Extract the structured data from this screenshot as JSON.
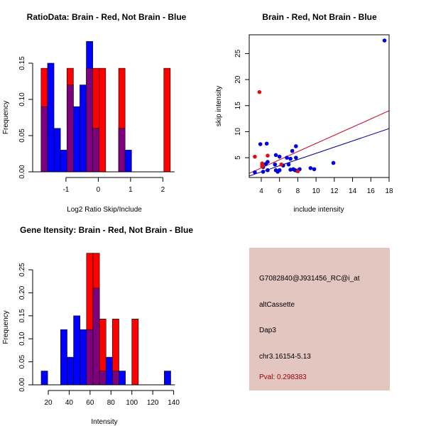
{
  "colors": {
    "brain": "#ff0000",
    "not_brain": "#0000ff",
    "overlap": "#7f007f",
    "brain_point": "#dd1111",
    "not_brain_point": "#0000dd",
    "red_line": "#cc0022",
    "blue_line": "#000099",
    "info_bg": "#e3c6c0",
    "pval_text": "#9b0000"
  },
  "chart_data": [
    {
      "id": "ratio-hist",
      "type": "bar",
      "title": "RatioData: Brain - Red, Not Brain - Blue",
      "xlabel": "Log2 Ratio Skip/Include",
      "ylabel": "Frequency",
      "xlim": [
        -1.85,
        2.35
      ],
      "ylim": [
        0,
        0.19
      ],
      "xticks": [
        -1,
        0,
        1,
        2
      ],
      "xtick_labels": [
        "-1",
        "0",
        "1",
        "2"
      ],
      "yticks": [
        0,
        0.05,
        0.1,
        0.15
      ],
      "ytick_labels": [
        "0.00",
        "0.05",
        "0.10",
        "0.15"
      ],
      "bin_width": 0.2,
      "bin_starts": [
        -1.77,
        -1.57,
        -1.37,
        -1.17,
        -0.97,
        -0.77,
        -0.57,
        -0.37,
        -0.17,
        0.03,
        0.23,
        0.43,
        0.63,
        0.83,
        1.03,
        1.23,
        1.43,
        1.63,
        1.83,
        2.03
      ],
      "series": [
        {
          "name": "Brain",
          "color": "red",
          "values": [
            0.143,
            0,
            0,
            0,
            0.143,
            0,
            0,
            0.143,
            0.143,
            0.143,
            0,
            0,
            0.143,
            0,
            0,
            0,
            0,
            0,
            0,
            0.143
          ]
        },
        {
          "name": "Not Brain",
          "color": "blue",
          "values": [
            0.09,
            0.15,
            0.06,
            0.03,
            0.12,
            0.09,
            0.12,
            0.18,
            0.06,
            0,
            0,
            0,
            0.06,
            0.03,
            0,
            0,
            0,
            0,
            0,
            0
          ]
        }
      ]
    },
    {
      "id": "intensity-scatter",
      "type": "scatter",
      "title": "Brain - Red, Not Brain - Blue",
      "xlabel": "include intensity",
      "ylabel": "skip intensity",
      "xlim": [
        2.68,
        18.0
      ],
      "ylim": [
        1.2,
        28.6
      ],
      "xticks": [
        4,
        6,
        8,
        10,
        12,
        14,
        16,
        18
      ],
      "xtick_labels": [
        "4",
        "6",
        "8",
        "10",
        "12",
        "14",
        "16",
        "18"
      ],
      "yticks": [
        5,
        10,
        15,
        20,
        25
      ],
      "ytick_labels": [
        "5",
        "10",
        "15",
        "20",
        "25"
      ],
      "series": [
        {
          "name": "Brain",
          "color": "red",
          "points": [
            [
              3.8,
              17.6
            ],
            [
              3.3,
              5.2
            ],
            [
              4.7,
              5.4
            ],
            [
              4.1,
              3.9
            ],
            [
              4.1,
              3.6
            ],
            [
              4.1,
              3.3
            ],
            [
              6.2,
              3.7
            ],
            [
              8.0,
              2.4
            ]
          ],
          "fit": {
            "slope": 0.784,
            "intercept": -0.1
          }
        },
        {
          "name": "Not Brain",
          "color": "blue",
          "points": [
            [
              17.5,
              27.5
            ],
            [
              3.9,
              7.6
            ],
            [
              4.6,
              7.7
            ],
            [
              4.7,
              4.2
            ],
            [
              4.5,
              3.8
            ],
            [
              4.2,
              3.2
            ],
            [
              4.2,
              2.3
            ],
            [
              4.7,
              2.6
            ],
            [
              3.3,
              2.2
            ],
            [
              5.6,
              5.5
            ],
            [
              6.0,
              5.2
            ],
            [
              5.5,
              3.7
            ],
            [
              5.6,
              2.6
            ],
            [
              5.8,
              2.3
            ],
            [
              6.0,
              2.6
            ],
            [
              6.4,
              3.5
            ],
            [
              6.8,
              5.0
            ],
            [
              7.0,
              3.7
            ],
            [
              7.2,
              4.8
            ],
            [
              7.4,
              6.3
            ],
            [
              7.8,
              7.2
            ],
            [
              7.8,
              5.0
            ],
            [
              7.2,
              2.7
            ],
            [
              7.5,
              2.8
            ],
            [
              7.7,
              2.6
            ],
            [
              8.2,
              2.8
            ],
            [
              7.9,
              2.5
            ],
            [
              9.4,
              3.0
            ],
            [
              9.8,
              2.8
            ],
            [
              11.9,
              4.0
            ]
          ],
          "fit": {
            "slope": 0.594,
            "intercept": -0.1
          }
        }
      ]
    },
    {
      "id": "gene-hist",
      "type": "bar",
      "title": "Gene Itensity: Brain - Red, Not Brain - Blue",
      "xlabel": "Intensity",
      "ylabel": "Frequency",
      "xlim": [
        7,
        146
      ],
      "ylim": [
        0,
        0.31
      ],
      "xticks": [
        20,
        40,
        60,
        80,
        100,
        120,
        140
      ],
      "xtick_labels": [
        "20",
        "40",
        "60",
        "80",
        "100",
        "120",
        "140"
      ],
      "yticks": [
        0,
        0.05,
        0.1,
        0.15,
        0.2,
        0.25
      ],
      "ytick_labels": [
        "0.00",
        "0.05",
        "0.10",
        "0.15",
        "0.20",
        "0.25"
      ],
      "bin_width": 6.2,
      "bin_starts": [
        13.2,
        19.4,
        25.6,
        31.8,
        38.0,
        44.2,
        50.4,
        56.6,
        62.8,
        69.0,
        75.2,
        81.4,
        87.6,
        93.8,
        100.0,
        106.2,
        112.4,
        118.6,
        124.8,
        131.0
      ],
      "series": [
        {
          "name": "Brain",
          "color": "red",
          "values": [
            0,
            0,
            0,
            0,
            0,
            0,
            0,
            0.286,
            0.286,
            0.143,
            0,
            0.143,
            0,
            0,
            0.143,
            0,
            0,
            0,
            0,
            0
          ]
        },
        {
          "name": "Not Brain",
          "color": "blue",
          "values": [
            0.03,
            0,
            0,
            0.12,
            0.06,
            0.15,
            0.12,
            0.12,
            0.21,
            0.03,
            0.06,
            0.03,
            0.03,
            0,
            0,
            0,
            0,
            0,
            0,
            0.03
          ]
        }
      ]
    }
  ],
  "info": {
    "probe_id": "G7082840@J931456_RC@i_at",
    "event_type": "altCassette",
    "gene": "Dap3",
    "location": "chr3.16154-5.13",
    "pval": "Pval: 0.298383"
  }
}
